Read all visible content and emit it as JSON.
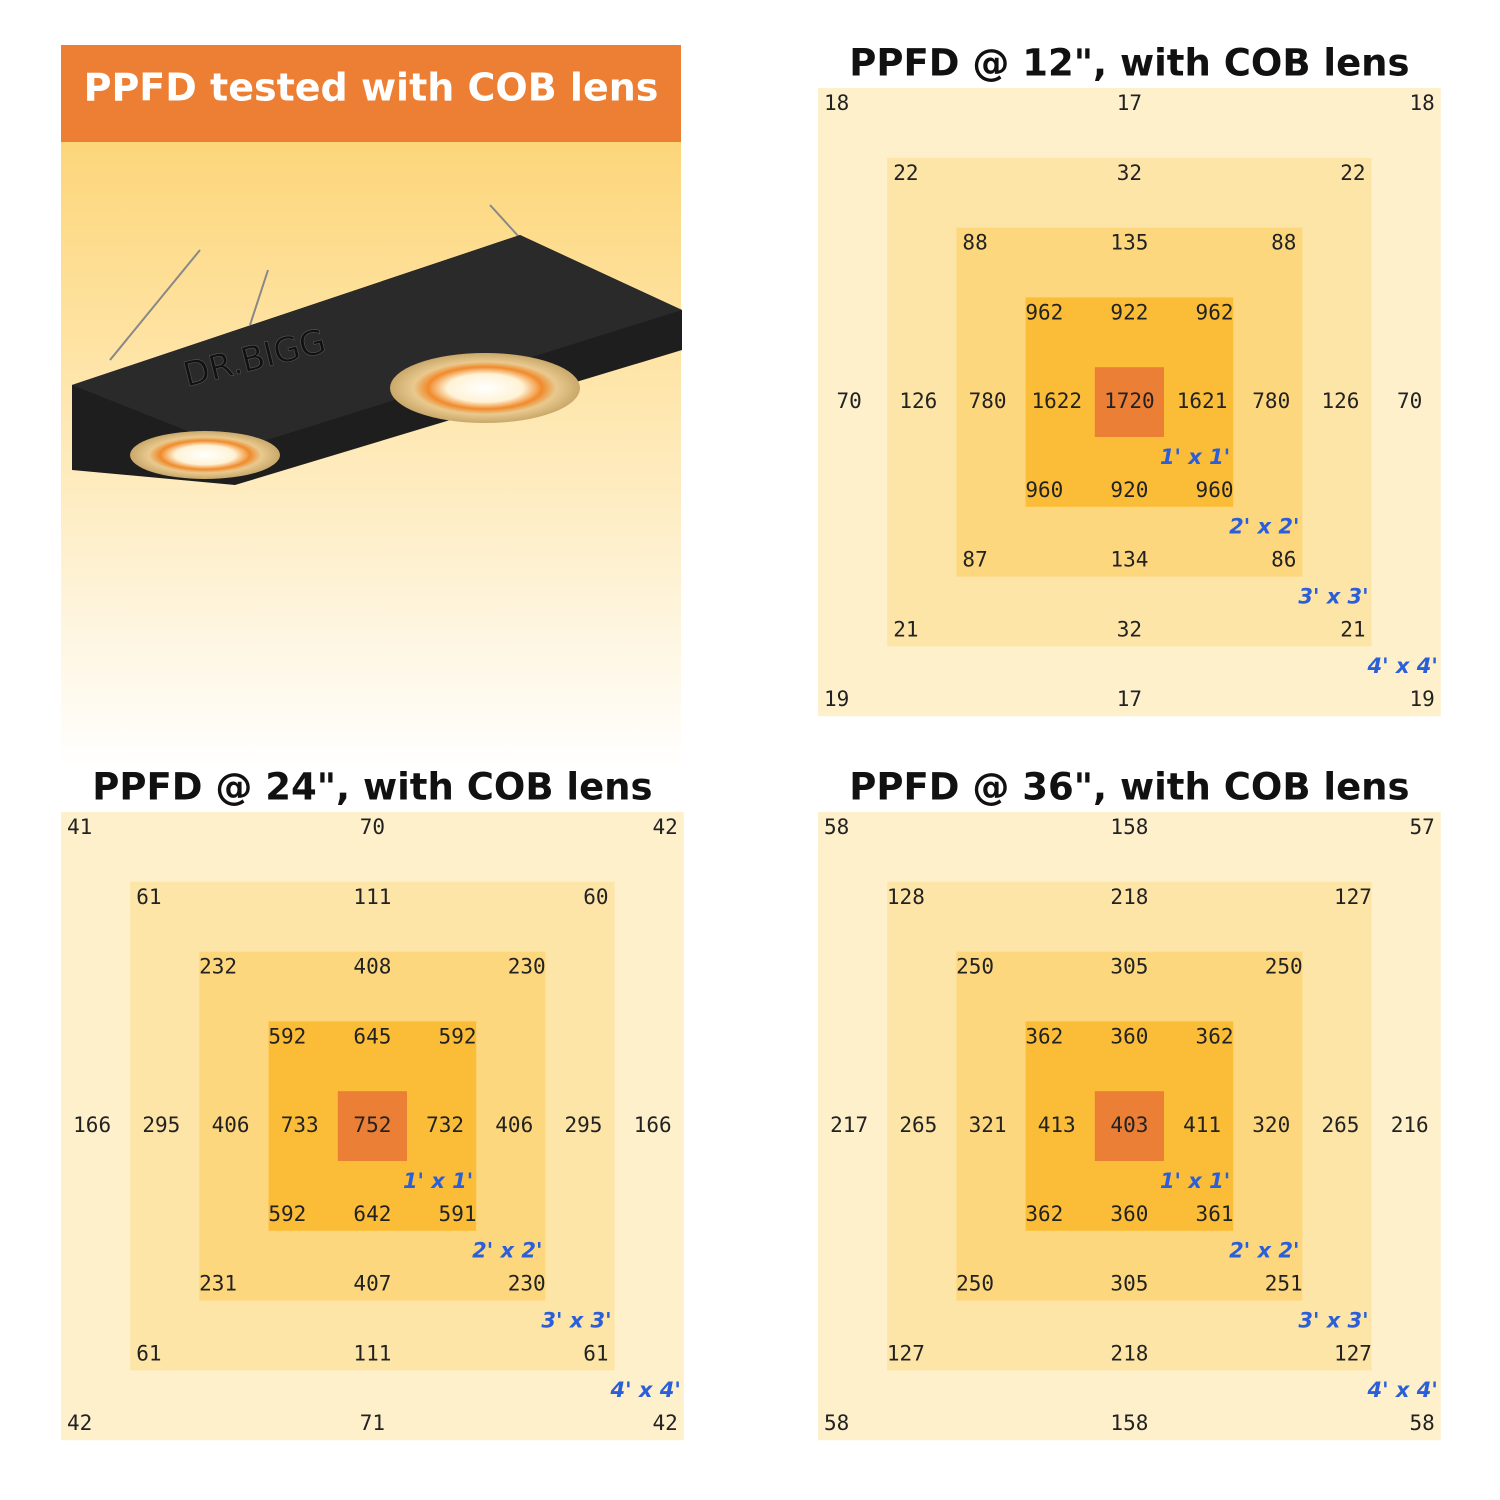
{
  "banner": {
    "title": "PPFD tested with COB lens",
    "brand": "DR.BIGG"
  },
  "grids": [
    {
      "title": "PPFD @ 12\", with COB lens",
      "center": 1720,
      "rings": [
        {
          "label": "1' x 1'",
          "top": [
            962,
            922,
            962
          ],
          "middle": [
            1622,
            1621
          ],
          "bottom": [
            960,
            920,
            960
          ]
        },
        {
          "label": "2' x 2'",
          "top": [
            88,
            135,
            88
          ],
          "middle": [
            780,
            780
          ],
          "bottom": [
            87,
            134,
            86
          ]
        },
        {
          "label": "3' x 3'",
          "top": [
            22,
            32,
            22
          ],
          "middle": [
            126,
            126
          ],
          "bottom": [
            21,
            32,
            21
          ]
        },
        {
          "label": "4' x 4'",
          "top": [
            18,
            17,
            18
          ],
          "middle": [
            70,
            70
          ],
          "bottom": [
            19,
            17,
            19
          ]
        }
      ]
    },
    {
      "title": "PPFD @ 24\", with COB lens",
      "center": 752,
      "rings": [
        {
          "label": "1' x 1'",
          "top": [
            592,
            645,
            592
          ],
          "middle": [
            733,
            732
          ],
          "bottom": [
            592,
            642,
            591
          ]
        },
        {
          "label": "2' x 2'",
          "top": [
            232,
            408,
            230
          ],
          "middle": [
            406,
            406
          ],
          "bottom": [
            231,
            407,
            230
          ]
        },
        {
          "label": "3' x 3'",
          "top": [
            61,
            111,
            60
          ],
          "middle": [
            295,
            295
          ],
          "bottom": [
            61,
            111,
            61
          ]
        },
        {
          "label": "4' x 4'",
          "top": [
            41,
            70,
            42
          ],
          "middle": [
            166,
            166
          ],
          "bottom": [
            42,
            71,
            42
          ]
        }
      ]
    },
    {
      "title": "PPFD @ 36\", with COB lens",
      "center": 403,
      "rings": [
        {
          "label": "1' x 1'",
          "top": [
            362,
            360,
            362
          ],
          "middle": [
            413,
            411
          ],
          "bottom": [
            362,
            360,
            361
          ]
        },
        {
          "label": "2' x 2'",
          "top": [
            250,
            305,
            250
          ],
          "middle": [
            321,
            320
          ],
          "bottom": [
            250,
            305,
            251
          ]
        },
        {
          "label": "3' x 3'",
          "top": [
            128,
            218,
            127
          ],
          "middle": [
            265,
            265
          ],
          "bottom": [
            127,
            218,
            127
          ]
        },
        {
          "label": "4' x 4'",
          "top": [
            58,
            158,
            57
          ],
          "middle": [
            217,
            216
          ],
          "bottom": [
            58,
            158,
            58
          ]
        }
      ]
    }
  ]
}
